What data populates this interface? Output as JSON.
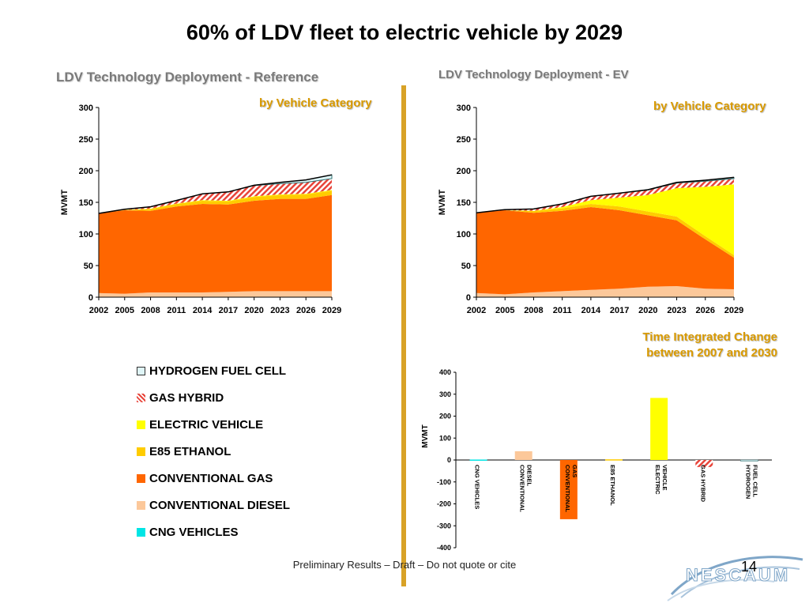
{
  "title": "60% of LDV fleet to electric vehicle by 2029",
  "left_panel": {
    "title": "LDV Technology Deployment - Reference",
    "subtitle": "by Vehicle Category"
  },
  "right_panel": {
    "title": "LDV Technology Deployment - EV",
    "subtitle": "by Vehicle Category"
  },
  "bar_panel": {
    "title_line1": "Time Integrated Change",
    "title_line2": "between 2007 and 2030"
  },
  "footer": {
    "note": "Preliminary Results – Draft – Do not quote or cite",
    "page": "14",
    "logo_text": "NESCAUM"
  },
  "legend": [
    {
      "label": "HYDROGEN FUEL CELL",
      "color": "#dff5f7",
      "style": "outline"
    },
    {
      "label": "GAS HYBRID",
      "color": "#e8443a",
      "style": "hatch"
    },
    {
      "label": "ELECTRIC VEHICLE",
      "color": "#ffff00",
      "style": "solid"
    },
    {
      "label": "E85 ETHANOL",
      "color": "#ffcc00",
      "style": "solid"
    },
    {
      "label": "CONVENTIONAL GAS",
      "color": "#ff6600",
      "style": "solid"
    },
    {
      "label": "CONVENTIONAL DIESEL",
      "color": "#fcc89a",
      "style": "solid"
    },
    {
      "label": "CNG VEHICLES",
      "color": "#00e5e5",
      "style": "solid"
    }
  ],
  "chart_data": [
    {
      "type": "area",
      "stacked": true,
      "ylabel": "MVMT",
      "ylim": [
        0,
        300
      ],
      "yticks": [
        0,
        50,
        100,
        150,
        200,
        250,
        300
      ],
      "x": [
        2002,
        2005,
        2008,
        2011,
        2014,
        2017,
        2020,
        2023,
        2026,
        2029
      ],
      "series": [
        {
          "name": "CNG VEHICLES",
          "color": "#00e5e5",
          "values": [
            0.5,
            0.5,
            0.5,
            0.5,
            0.5,
            0.5,
            0.5,
            0.5,
            0.5,
            0.5
          ]
        },
        {
          "name": "CONVENTIONAL DIESEL",
          "color": "#fcc89a",
          "values": [
            6,
            5,
            7,
            7,
            7,
            8,
            9,
            9,
            9,
            9
          ]
        },
        {
          "name": "CONVENTIONAL GAS",
          "color": "#ff6600",
          "values": [
            126,
            132,
            129,
            136,
            140,
            138,
            143,
            146,
            146,
            152
          ]
        },
        {
          "name": "E85 ETHANOL",
          "color": "#ffcc00",
          "values": [
            0,
            0.5,
            3,
            4,
            5,
            5,
            6,
            6,
            7,
            7
          ]
        },
        {
          "name": "ELECTRIC VEHICLE",
          "color": "#ffff00",
          "values": [
            0,
            0,
            0.5,
            0.5,
            1,
            1,
            1,
            1,
            1,
            1
          ]
        },
        {
          "name": "GAS HYBRID",
          "color": "#e8443a",
          "values": [
            0,
            1,
            3,
            5,
            10,
            14,
            17,
            17,
            18,
            18
          ]
        },
        {
          "name": "HYDROGEN FUEL CELL",
          "color": "#dff5f7",
          "values": [
            0,
            0,
            0,
            0,
            0,
            0,
            0.5,
            2,
            4,
            6
          ]
        }
      ]
    },
    {
      "type": "area",
      "stacked": true,
      "ylabel": "MVMT",
      "ylim": [
        0,
        300
      ],
      "yticks": [
        0,
        50,
        100,
        150,
        200,
        250,
        300
      ],
      "x": [
        2002,
        2005,
        2008,
        2011,
        2014,
        2017,
        2020,
        2023,
        2026,
        2029
      ],
      "series": [
        {
          "name": "CNG VEHICLES",
          "color": "#00e5e5",
          "values": [
            0.5,
            0.5,
            0.5,
            0.5,
            0.5,
            0.5,
            0.5,
            0.5,
            0.5,
            0.5
          ]
        },
        {
          "name": "CONVENTIONAL DIESEL",
          "color": "#fcc89a",
          "values": [
            6,
            4,
            7,
            9,
            11,
            13,
            16,
            17,
            13,
            12
          ]
        },
        {
          "name": "CONVENTIONAL GAS",
          "color": "#ff6600",
          "values": [
            127,
            133,
            126,
            127,
            131,
            124,
            113,
            104,
            78,
            50
          ]
        },
        {
          "name": "E85 ETHANOL",
          "color": "#ffcc00",
          "values": [
            0,
            0,
            3,
            4,
            5,
            6,
            6,
            6,
            5,
            4
          ]
        },
        {
          "name": "ELECTRIC VEHICLE",
          "color": "#ffff00",
          "values": [
            0,
            0,
            0,
            2,
            6,
            14,
            26,
            45,
            78,
            112
          ]
        },
        {
          "name": "GAS HYBRID",
          "color": "#e8443a",
          "values": [
            0,
            1,
            3,
            5,
            6,
            7,
            8,
            8,
            9,
            9
          ]
        },
        {
          "name": "HYDROGEN FUEL CELL",
          "color": "#dff5f7",
          "values": [
            0,
            0,
            0,
            0,
            0,
            0,
            0.5,
            1,
            1.5,
            2
          ]
        }
      ]
    },
    {
      "type": "bar",
      "ylabel": "MVMT",
      "ylim": [
        -400,
        400
      ],
      "yticks": [
        -400,
        -300,
        -200,
        -100,
        0,
        100,
        200,
        300,
        400
      ],
      "categories": [
        "CNG VEHICLES",
        "CONVENTIONAL DIESEL",
        "CONVENTIONAL GAS",
        "E85 ETHANOL",
        "ELECTRIC VEHICLE",
        "GAS HYBRID",
        "HYDROGEN FUEL CELL"
      ],
      "values": [
        2,
        40,
        -270,
        3,
        283,
        -32,
        -2
      ],
      "colors": [
        "#00e5e5",
        "#fcc89a",
        "#ff6600",
        "#ffcc00",
        "#ffff00",
        "#e8443a",
        "#dff5f7"
      ]
    }
  ]
}
